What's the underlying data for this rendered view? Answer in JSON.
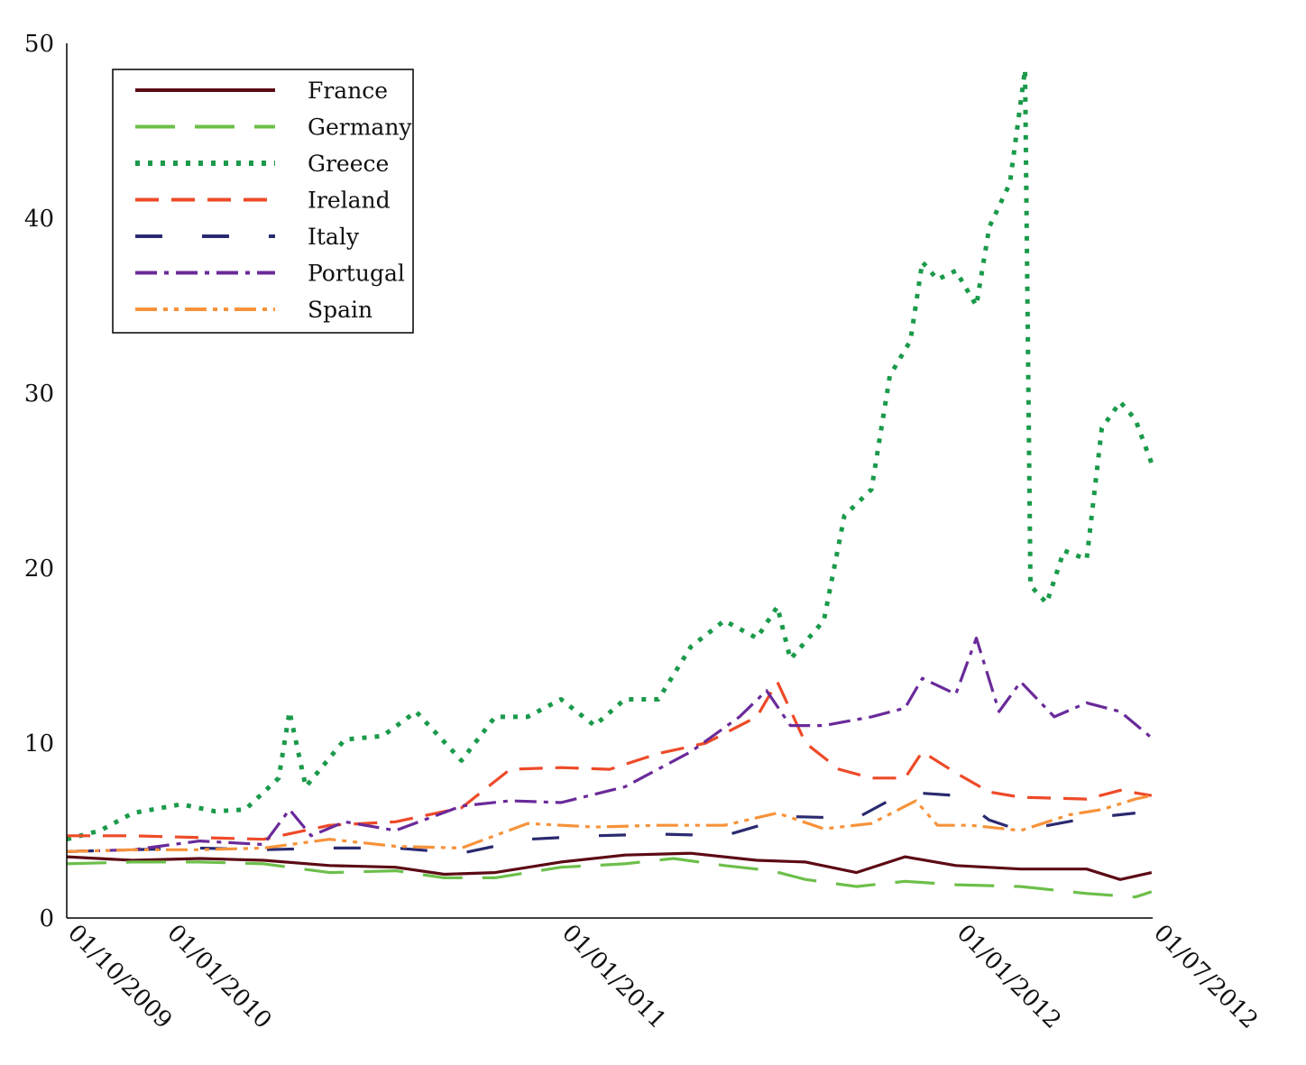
{
  "chart_data": {
    "type": "line",
    "xlabel": "",
    "ylabel": "",
    "ylim": [
      0,
      50
    ],
    "y_ticks": [
      0,
      10,
      20,
      30,
      40,
      50
    ],
    "xlim": [
      "2009-10-01",
      "2012-07-01"
    ],
    "x_ticks": [
      {
        "date": "2009-10-01",
        "label": "01/10/2009"
      },
      {
        "date": "2010-01-01",
        "label": "01/01/2010"
      },
      {
        "date": "2011-01-01",
        "label": "01/01/2011"
      },
      {
        "date": "2012-01-01",
        "label": "01/01/2012"
      },
      {
        "date": "2012-07-01",
        "label": "01/07/2012"
      }
    ],
    "grid": false,
    "legend_position": "top-left",
    "series": [
      {
        "name": "France",
        "color": "#5c0a14",
        "dash": "solid",
        "points": [
          [
            "2009-10-01",
            3.5
          ],
          [
            "2009-12-01",
            3.3
          ],
          [
            "2010-02-01",
            3.4
          ],
          [
            "2010-04-01",
            3.3
          ],
          [
            "2010-06-01",
            3.0
          ],
          [
            "2010-08-01",
            2.9
          ],
          [
            "2010-09-15",
            2.5
          ],
          [
            "2010-11-01",
            2.6
          ],
          [
            "2011-01-01",
            3.2
          ],
          [
            "2011-03-01",
            3.6
          ],
          [
            "2011-05-01",
            3.7
          ],
          [
            "2011-07-01",
            3.3
          ],
          [
            "2011-08-15",
            3.2
          ],
          [
            "2011-10-01",
            2.6
          ],
          [
            "2011-11-15",
            3.5
          ],
          [
            "2012-01-01",
            3.0
          ],
          [
            "2012-03-01",
            2.8
          ],
          [
            "2012-05-01",
            2.8
          ],
          [
            "2012-06-01",
            2.2
          ],
          [
            "2012-06-30",
            2.6
          ]
        ]
      },
      {
        "name": "Germany",
        "color": "#6cbf4a",
        "dash": "long-dash",
        "points": [
          [
            "2009-10-01",
            3.1
          ],
          [
            "2009-12-01",
            3.2
          ],
          [
            "2010-02-01",
            3.2
          ],
          [
            "2010-04-01",
            3.1
          ],
          [
            "2010-06-01",
            2.6
          ],
          [
            "2010-08-01",
            2.7
          ],
          [
            "2010-09-15",
            2.3
          ],
          [
            "2010-11-01",
            2.3
          ],
          [
            "2011-01-01",
            2.9
          ],
          [
            "2011-03-01",
            3.1
          ],
          [
            "2011-04-15",
            3.4
          ],
          [
            "2011-06-01",
            3.0
          ],
          [
            "2011-07-15",
            2.7
          ],
          [
            "2011-08-15",
            2.2
          ],
          [
            "2011-10-01",
            1.8
          ],
          [
            "2011-11-15",
            2.1
          ],
          [
            "2012-01-01",
            1.9
          ],
          [
            "2012-03-01",
            1.8
          ],
          [
            "2012-05-01",
            1.4
          ],
          [
            "2012-06-15",
            1.2
          ],
          [
            "2012-06-30",
            1.5
          ]
        ]
      },
      {
        "name": "Greece",
        "color": "#1a9a4a",
        "dash": "dotted",
        "points": [
          [
            "2009-10-01",
            4.5
          ],
          [
            "2009-11-01",
            5.0
          ],
          [
            "2009-12-01",
            6.0
          ],
          [
            "2010-01-15",
            6.5
          ],
          [
            "2010-02-15",
            6.1
          ],
          [
            "2010-03-15",
            6.2
          ],
          [
            "2010-04-15",
            8.0
          ],
          [
            "2010-04-25",
            11.8
          ],
          [
            "2010-05-10",
            7.5
          ],
          [
            "2010-06-15",
            10.2
          ],
          [
            "2010-07-20",
            10.4
          ],
          [
            "2010-08-20",
            11.8
          ],
          [
            "2010-10-01",
            9.0
          ],
          [
            "2010-11-01",
            11.5
          ],
          [
            "2010-12-01",
            11.5
          ],
          [
            "2011-01-01",
            12.5
          ],
          [
            "2011-02-01",
            11.0
          ],
          [
            "2011-03-01",
            12.5
          ],
          [
            "2011-04-01",
            12.5
          ],
          [
            "2011-05-01",
            15.5
          ],
          [
            "2011-06-01",
            17.0
          ],
          [
            "2011-07-01",
            16.0
          ],
          [
            "2011-07-20",
            17.8
          ],
          [
            "2011-08-01",
            14.8
          ],
          [
            "2011-09-01",
            17.0
          ],
          [
            "2011-09-20",
            23.0
          ],
          [
            "2011-10-15",
            24.5
          ],
          [
            "2011-11-01",
            31.0
          ],
          [
            "2011-11-20",
            33.0
          ],
          [
            "2011-12-01",
            37.5
          ],
          [
            "2011-12-15",
            36.5
          ],
          [
            "2012-01-01",
            37.0
          ],
          [
            "2012-01-20",
            35.0
          ],
          [
            "2012-02-01",
            39.5
          ],
          [
            "2012-02-20",
            42.0
          ],
          [
            "2012-03-05",
            48.5
          ],
          [
            "2012-03-10",
            19.0
          ],
          [
            "2012-03-25",
            18.0
          ],
          [
            "2012-04-10",
            21.0
          ],
          [
            "2012-05-01",
            20.5
          ],
          [
            "2012-05-15",
            28.0
          ],
          [
            "2012-06-01",
            29.5
          ],
          [
            "2012-06-15",
            28.5
          ],
          [
            "2012-06-30",
            26.0
          ]
        ]
      },
      {
        "name": "Ireland",
        "color": "#ee4a28",
        "dash": "dash",
        "points": [
          [
            "2009-10-01",
            4.7
          ],
          [
            "2009-12-01",
            4.7
          ],
          [
            "2010-02-01",
            4.6
          ],
          [
            "2010-04-01",
            4.5
          ],
          [
            "2010-06-01",
            5.3
          ],
          [
            "2010-08-01",
            5.5
          ],
          [
            "2010-10-01",
            6.3
          ],
          [
            "2010-11-15",
            8.5
          ],
          [
            "2011-01-01",
            8.6
          ],
          [
            "2011-02-15",
            8.5
          ],
          [
            "2011-04-01",
            9.4
          ],
          [
            "2011-05-15",
            10.0
          ],
          [
            "2011-07-01",
            11.5
          ],
          [
            "2011-07-20",
            13.5
          ],
          [
            "2011-08-15",
            10.0
          ],
          [
            "2011-09-15",
            8.5
          ],
          [
            "2011-10-15",
            8.0
          ],
          [
            "2011-11-15",
            8.0
          ],
          [
            "2011-12-01",
            9.5
          ],
          [
            "2012-01-01",
            8.3
          ],
          [
            "2012-02-01",
            7.2
          ],
          [
            "2012-03-01",
            6.9
          ],
          [
            "2012-05-01",
            6.8
          ],
          [
            "2012-06-01",
            7.3
          ],
          [
            "2012-06-30",
            7.0
          ]
        ]
      },
      {
        "name": "Italy",
        "color": "#2a2a70",
        "dash": "long-gap",
        "points": [
          [
            "2009-10-01",
            3.8
          ],
          [
            "2009-12-01",
            3.9
          ],
          [
            "2010-02-01",
            4.0
          ],
          [
            "2010-04-01",
            3.9
          ],
          [
            "2010-06-01",
            4.0
          ],
          [
            "2010-08-01",
            4.0
          ],
          [
            "2010-10-01",
            3.7
          ],
          [
            "2010-12-01",
            4.5
          ],
          [
            "2011-02-01",
            4.7
          ],
          [
            "2011-04-01",
            4.8
          ],
          [
            "2011-06-01",
            4.7
          ],
          [
            "2011-08-01",
            5.8
          ],
          [
            "2011-10-01",
            5.7
          ],
          [
            "2011-11-15",
            7.2
          ],
          [
            "2012-01-01",
            7.0
          ],
          [
            "2012-02-01",
            5.6
          ],
          [
            "2012-03-01",
            5.0
          ],
          [
            "2012-05-01",
            5.7
          ],
          [
            "2012-06-15",
            6.0
          ]
        ]
      },
      {
        "name": "Portugal",
        "color": "#6a2a9a",
        "dash": "dash-dot",
        "points": [
          [
            "2009-10-01",
            3.8
          ],
          [
            "2009-12-01",
            3.9
          ],
          [
            "2010-02-01",
            4.4
          ],
          [
            "2010-04-01",
            4.2
          ],
          [
            "2010-04-25",
            6.2
          ],
          [
            "2010-05-15",
            4.7
          ],
          [
            "2010-06-15",
            5.5
          ],
          [
            "2010-08-01",
            5.0
          ],
          [
            "2010-10-01",
            6.4
          ],
          [
            "2010-11-15",
            6.7
          ],
          [
            "2011-01-01",
            6.6
          ],
          [
            "2011-03-01",
            7.5
          ],
          [
            "2011-05-01",
            9.5
          ],
          [
            "2011-06-15",
            11.5
          ],
          [
            "2011-07-10",
            13.0
          ],
          [
            "2011-08-01",
            11.0
          ],
          [
            "2011-09-01",
            11.0
          ],
          [
            "2011-10-15",
            11.5
          ],
          [
            "2011-11-15",
            12.0
          ],
          [
            "2011-12-01",
            13.7
          ],
          [
            "2012-01-01",
            12.8
          ],
          [
            "2012-01-20",
            16.0
          ],
          [
            "2012-02-10",
            11.8
          ],
          [
            "2012-03-01",
            13.5
          ],
          [
            "2012-04-01",
            11.5
          ],
          [
            "2012-05-01",
            12.3
          ],
          [
            "2012-06-01",
            11.8
          ],
          [
            "2012-06-30",
            10.3
          ]
        ]
      },
      {
        "name": "Spain",
        "color": "#f7923a",
        "dash": "dash-dot-dot",
        "points": [
          [
            "2009-10-01",
            3.8
          ],
          [
            "2009-12-01",
            3.9
          ],
          [
            "2010-02-01",
            3.9
          ],
          [
            "2010-04-01",
            4.0
          ],
          [
            "2010-06-01",
            4.5
          ],
          [
            "2010-08-01",
            4.1
          ],
          [
            "2010-10-01",
            4.0
          ],
          [
            "2010-12-01",
            5.4
          ],
          [
            "2011-02-01",
            5.2
          ],
          [
            "2011-04-01",
            5.3
          ],
          [
            "2011-06-01",
            5.3
          ],
          [
            "2011-07-20",
            6.0
          ],
          [
            "2011-09-01",
            5.1
          ],
          [
            "2011-10-15",
            5.4
          ],
          [
            "2011-11-25",
            6.7
          ],
          [
            "2011-12-15",
            5.3
          ],
          [
            "2012-01-15",
            5.3
          ],
          [
            "2012-03-01",
            5.0
          ],
          [
            "2012-04-15",
            5.9
          ],
          [
            "2012-05-15",
            6.2
          ],
          [
            "2012-06-15",
            6.8
          ],
          [
            "2012-06-30",
            7.0
          ]
        ]
      }
    ]
  }
}
